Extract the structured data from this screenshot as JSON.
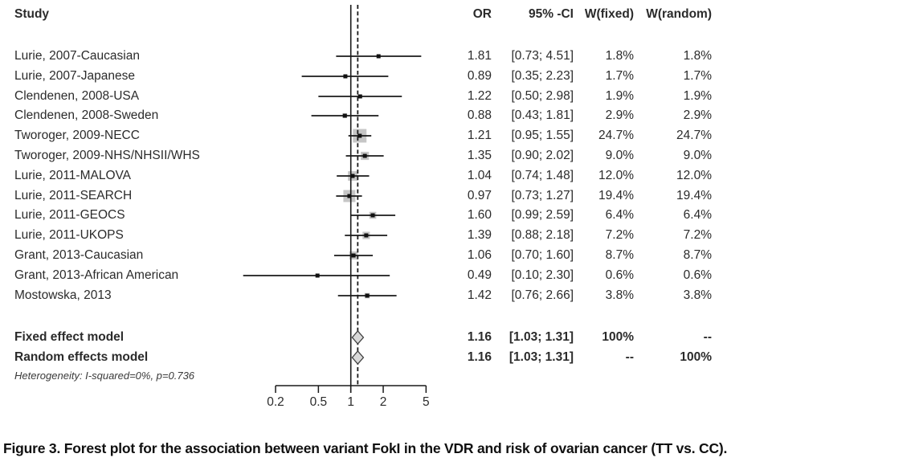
{
  "figure": {
    "caption": "Figure 3. Forest plot for the association between variant FokI in the VDR and risk of ovarian cancer (TT vs. CC)."
  },
  "table": {
    "headers": {
      "study": "Study",
      "or": "OR",
      "ci": "95% -CI",
      "w_fixed": "W(fixed)",
      "w_random": "W(random)"
    },
    "rows": [
      {
        "study": "Lurie, 2007-Caucasian",
        "or": "1.81",
        "ci": "[0.73; 4.51]",
        "w_fixed": "1.8%",
        "w_random": "1.8%"
      },
      {
        "study": "Lurie, 2007-Japanese",
        "or": "0.89",
        "ci": "[0.35; 2.23]",
        "w_fixed": "1.7%",
        "w_random": "1.7%"
      },
      {
        "study": "Clendenen, 2008-USA",
        "or": "1.22",
        "ci": "[0.50; 2.98]",
        "w_fixed": "1.9%",
        "w_random": "1.9%"
      },
      {
        "study": "Clendenen, 2008-Sweden",
        "or": "0.88",
        "ci": "[0.43; 1.81]",
        "w_fixed": "2.9%",
        "w_random": "2.9%"
      },
      {
        "study": "Tworoger, 2009-NECC",
        "or": "1.21",
        "ci": "[0.95; 1.55]",
        "w_fixed": "24.7%",
        "w_random": "24.7%"
      },
      {
        "study": "Tworoger, 2009-NHS/NHSII/WHS",
        "or": "1.35",
        "ci": "[0.90; 2.02]",
        "w_fixed": "9.0%",
        "w_random": "9.0%"
      },
      {
        "study": "Lurie, 2011-MALOVA",
        "or": "1.04",
        "ci": "[0.74; 1.48]",
        "w_fixed": "12.0%",
        "w_random": "12.0%"
      },
      {
        "study": "Lurie, 2011-SEARCH",
        "or": "0.97",
        "ci": "[0.73; 1.27]",
        "w_fixed": "19.4%",
        "w_random": "19.4%"
      },
      {
        "study": "Lurie, 2011-GEOCS",
        "or": "1.60",
        "ci": "[0.99; 2.59]",
        "w_fixed": "6.4%",
        "w_random": "6.4%"
      },
      {
        "study": "Lurie, 2011-UKOPS",
        "or": "1.39",
        "ci": "[0.88; 2.18]",
        "w_fixed": "7.2%",
        "w_random": "7.2%"
      },
      {
        "study": "Grant, 2013-Caucasian",
        "or": "1.06",
        "ci": "[0.70; 1.60]",
        "w_fixed": "8.7%",
        "w_random": "8.7%"
      },
      {
        "study": "Grant, 2013-African American",
        "or": "0.49",
        "ci": "[0.10; 2.30]",
        "w_fixed": "0.6%",
        "w_random": "0.6%"
      },
      {
        "study": "Mostowska, 2013",
        "or": "1.42",
        "ci": "[0.76; 2.66]",
        "w_fixed": "3.8%",
        "w_random": "3.8%"
      }
    ],
    "summary": [
      {
        "label": "Fixed effect model",
        "or": "1.16",
        "ci": "[1.03; 1.31]",
        "w_fixed": "100%",
        "w_random": "--"
      },
      {
        "label": "Random effects model",
        "or": "1.16",
        "ci": "[1.03; 1.31]",
        "w_fixed": "--",
        "w_random": "100%"
      }
    ],
    "heterogeneity": "Heterogeneity: I-squared=0%, p=0.736"
  },
  "chart_data": {
    "type": "forest",
    "x_scale": "log",
    "xlim": [
      0.2,
      5
    ],
    "x_ticks": [
      0.2,
      0.5,
      1,
      2,
      5
    ],
    "x_tick_labels": [
      "0.2",
      "0.5",
      "1",
      "2",
      "5"
    ],
    "reference_line": 1,
    "pooled_line": 1.16,
    "studies": [
      {
        "name": "Lurie, 2007-Caucasian",
        "or": 1.81,
        "ci_low": 0.73,
        "ci_high": 4.51,
        "weight": 1.8
      },
      {
        "name": "Lurie, 2007-Japanese",
        "or": 0.89,
        "ci_low": 0.35,
        "ci_high": 2.23,
        "weight": 1.7
      },
      {
        "name": "Clendenen, 2008-USA",
        "or": 1.22,
        "ci_low": 0.5,
        "ci_high": 2.98,
        "weight": 1.9
      },
      {
        "name": "Clendenen, 2008-Sweden",
        "or": 0.88,
        "ci_low": 0.43,
        "ci_high": 1.81,
        "weight": 2.9
      },
      {
        "name": "Tworoger, 2009-NECC",
        "or": 1.21,
        "ci_low": 0.95,
        "ci_high": 1.55,
        "weight": 24.7
      },
      {
        "name": "Tworoger, 2009-NHS/NHSII/WHS",
        "or": 1.35,
        "ci_low": 0.9,
        "ci_high": 2.02,
        "weight": 9.0
      },
      {
        "name": "Lurie, 2011-MALOVA",
        "or": 1.04,
        "ci_low": 0.74,
        "ci_high": 1.48,
        "weight": 12.0
      },
      {
        "name": "Lurie, 2011-SEARCH",
        "or": 0.97,
        "ci_low": 0.73,
        "ci_high": 1.27,
        "weight": 19.4
      },
      {
        "name": "Lurie, 2011-GEOCS",
        "or": 1.6,
        "ci_low": 0.99,
        "ci_high": 2.59,
        "weight": 6.4
      },
      {
        "name": "Lurie, 2011-UKOPS",
        "or": 1.39,
        "ci_low": 0.88,
        "ci_high": 2.18,
        "weight": 7.2
      },
      {
        "name": "Grant, 2013-Caucasian",
        "or": 1.06,
        "ci_low": 0.7,
        "ci_high": 1.6,
        "weight": 8.7
      },
      {
        "name": "Grant, 2013-African American",
        "or": 0.49,
        "ci_low": 0.1,
        "ci_high": 2.3,
        "weight": 0.6
      },
      {
        "name": "Mostowska, 2013",
        "or": 1.42,
        "ci_low": 0.76,
        "ci_high": 2.66,
        "weight": 3.8
      }
    ],
    "summaries": [
      {
        "name": "Fixed effect model",
        "or": 1.16,
        "ci_low": 1.03,
        "ci_high": 1.31
      },
      {
        "name": "Random effects model",
        "or": 1.16,
        "ci_low": 1.03,
        "ci_high": 1.31
      }
    ],
    "colors": {
      "line": "#1a1a1a",
      "weight_square": "#c6c6c6",
      "diamond_fill": "#d9d9d9",
      "diamond_stroke": "#3f3f3f"
    }
  }
}
